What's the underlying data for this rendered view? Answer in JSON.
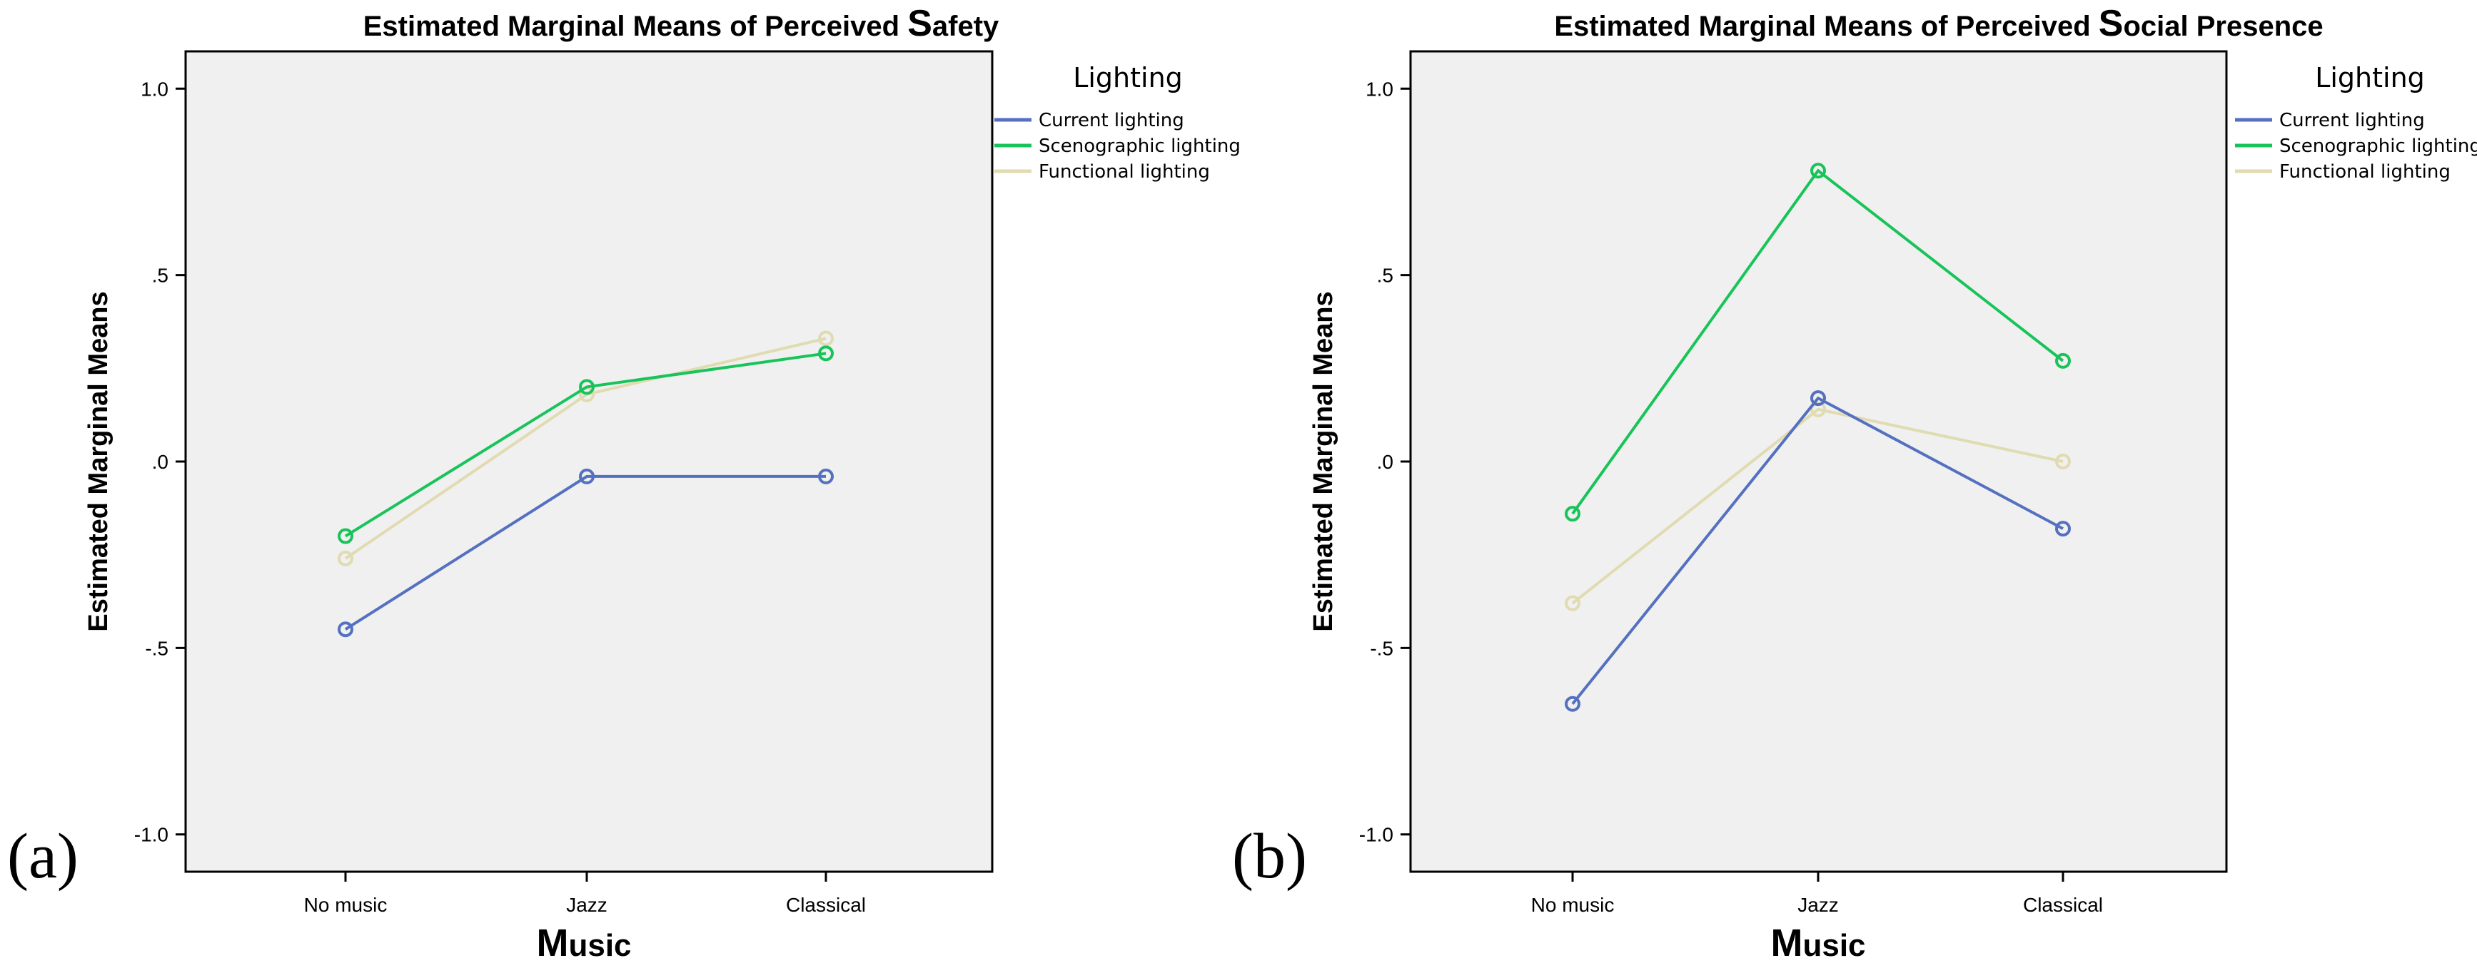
{
  "chart_data": [
    {
      "type": "line",
      "panel_label": "(a)",
      "title_prefix": "Estimated Marginal Means of Perceived ",
      "title_cap": "S",
      "title_rest": "afety",
      "ylabel": "Estimated Marginal Means",
      "xlabel_cap": "M",
      "xlabel_rest": "usic",
      "categories": [
        "No music",
        "Jazz",
        "Classical"
      ],
      "ylim": [
        -1.1,
        1.1
      ],
      "yticks": [
        1.0,
        0.5,
        0.0,
        -0.5,
        -1.0
      ],
      "ytick_labels": [
        "1.0",
        ".5",
        ".0",
        "-.5",
        "-1.0"
      ],
      "grid": false,
      "legend": {
        "title": "Lighting",
        "position": "right"
      },
      "series": [
        {
          "name": "Current lighting",
          "color": "#5470c0",
          "values": [
            -0.45,
            -0.04,
            -0.04
          ]
        },
        {
          "name": "Scenographic lighting",
          "color": "#18c45a",
          "values": [
            -0.2,
            0.2,
            0.29
          ]
        },
        {
          "name": "Functional lighting",
          "color": "#e0dbb0",
          "values": [
            -0.26,
            0.18,
            0.33
          ]
        }
      ]
    },
    {
      "type": "line",
      "panel_label": "(b)",
      "title_prefix": "Estimated Marginal Means of Perceived ",
      "title_cap": "S",
      "title_rest": "ocial Presence",
      "ylabel": "Estimated Marginal Means",
      "xlabel_cap": "M",
      "xlabel_rest": "usic",
      "categories": [
        "No music",
        "Jazz",
        "Classical"
      ],
      "ylim": [
        -1.1,
        1.1
      ],
      "yticks": [
        1.0,
        0.5,
        0.0,
        -0.5,
        -1.0
      ],
      "ytick_labels": [
        "1.0",
        ".5",
        ".0",
        "-.5",
        "-1.0"
      ],
      "grid": false,
      "legend": {
        "title": "Lighting",
        "position": "right"
      },
      "series": [
        {
          "name": "Current lighting",
          "color": "#5470c0",
          "values": [
            -0.65,
            0.17,
            -0.18
          ]
        },
        {
          "name": "Scenographic lighting",
          "color": "#18c45a",
          "values": [
            -0.14,
            0.78,
            0.27
          ]
        },
        {
          "name": "Functional lighting",
          "color": "#e0dbb0",
          "values": [
            -0.38,
            0.14,
            0.0
          ]
        }
      ]
    }
  ]
}
